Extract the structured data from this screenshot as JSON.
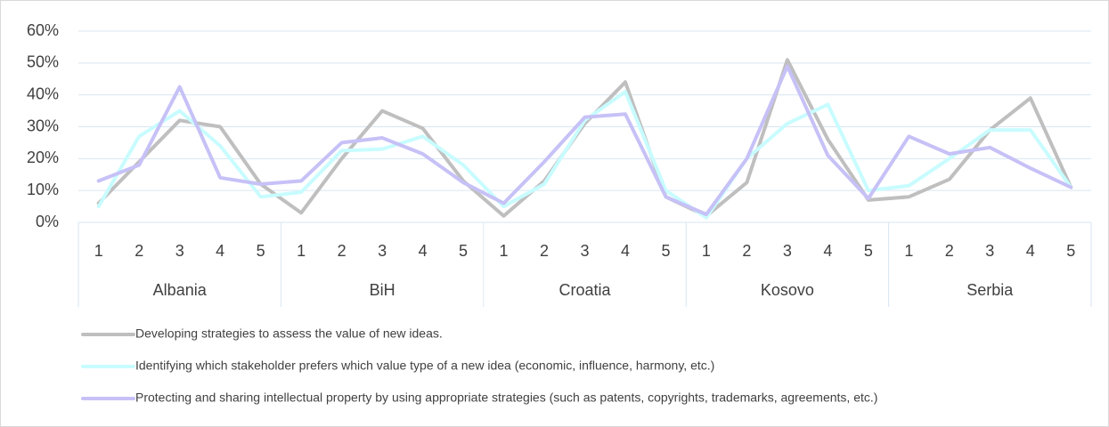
{
  "chart_data": {
    "type": "line",
    "categories": [
      "1",
      "2",
      "3",
      "4",
      "5",
      "1",
      "2",
      "3",
      "4",
      "5",
      "1",
      "2",
      "3",
      "4",
      "5",
      "1",
      "2",
      "3",
      "4",
      "5",
      "1",
      "2",
      "3",
      "4",
      "5"
    ],
    "groups": [
      "Albania",
      "BiH",
      "Croatia",
      "Kosovo",
      "Serbia"
    ],
    "ylim": [
      0,
      60
    ],
    "yticks": [
      {
        "value": 0,
        "label": "0%"
      },
      {
        "value": 10,
        "label": "10%"
      },
      {
        "value": 20,
        "label": "20%"
      },
      {
        "value": 30,
        "label": "30%"
      },
      {
        "value": 40,
        "label": "40%"
      },
      {
        "value": 50,
        "label": "50%"
      },
      {
        "value": 60,
        "label": "60%"
      }
    ],
    "grid": true,
    "legend": "bottom",
    "series": [
      {
        "name": "Developing strategies to assess the value of new ideas.",
        "color": "#bfbfbf",
        "values": [
          6,
          19,
          32,
          30,
          12,
          3,
          20,
          35,
          29.5,
          13,
          2,
          13,
          31,
          44,
          8,
          2,
          12.5,
          51,
          26,
          7,
          8,
          13.5,
          29,
          39,
          11
        ]
      },
      {
        "name": "Identifying which stakeholder prefers which value type of a new idea (economic, influence, harmony, etc.)",
        "color": "#c8fcff",
        "values": [
          5,
          27,
          35,
          24,
          8,
          9.5,
          22.5,
          23,
          27,
          18,
          5,
          12,
          32,
          41,
          10,
          1.5,
          20,
          31,
          37,
          10,
          11.5,
          20,
          29,
          29,
          11
        ]
      },
      {
        "name": "Protecting and sharing intellectual property by using appropriate strategies (such as patents, copyrights, trademarks, agreements, etc.)",
        "color": "#c6c1f6",
        "values": [
          13,
          18,
          42.5,
          14,
          12,
          13,
          25,
          26.5,
          21.5,
          12.5,
          6,
          19,
          33,
          34,
          8,
          2.5,
          20,
          49,
          21,
          7.5,
          27,
          21.5,
          23.5,
          17,
          11
        ]
      }
    ]
  }
}
